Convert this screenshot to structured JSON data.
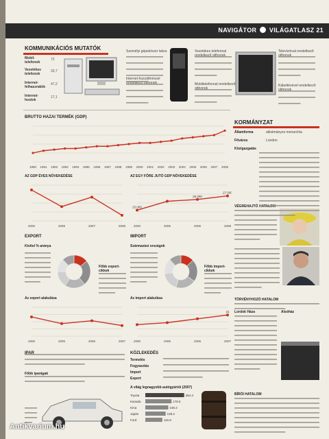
{
  "header": {
    "nav_left": "NAVIGÁTOR",
    "nav_right": "VILÁGATLASZ",
    "page_number": "21",
    "icon": "globe-icon"
  },
  "kom": {
    "title": "KOMMUNIKÁCIÓS MUTATÓK",
    "labels": [
      "Mobil-telefonok",
      "Vezetékes telefonok",
      "Internet-felhasználók",
      "Internet-hostok"
    ],
    "values": [
      "72",
      "33,7",
      "47,2",
      "17,1"
    ]
  },
  "dev_labels": [
    "Személyi gépek/ezer lakos",
    "Internet-hozzáféréssel rendelkező otthonok",
    "Vezetékes telefonnal rendelkező otthonok",
    "Mobiltelefonnal rendelkező otthonok",
    "Televízióval rendelkező otthonok",
    "Kábeltévével rendelkező otthonok"
  ],
  "gdp": {
    "title": "BRUTTO HAZAI TERMÉK (GDP)",
    "x": [
      "1990",
      "1991",
      "1992",
      "1993",
      "1994",
      "1995",
      "1996",
      "1997",
      "1998",
      "1999",
      "2000",
      "2001",
      "2002",
      "2003",
      "2004",
      "2005",
      "2006",
      "2007",
      "2008"
    ],
    "values": [
      0.8,
      1.0,
      1.1,
      1.2,
      1.2,
      1.3,
      1.4,
      1.4,
      1.5,
      1.6,
      1.7,
      1.7,
      1.8,
      1.9,
      2.1,
      2.2,
      2.3,
      2.4,
      2.8
    ]
  },
  "gdp_growth": {
    "title": "AZ GDP ÉVES NÖVEKEDÉSE",
    "x": [
      "2000",
      "2005",
      "2007",
      "2008"
    ],
    "values": [
      3.9,
      1.8,
      3.0,
      0.7
    ]
  },
  "gdp_pc": {
    "title": "AZ EGY FŐRE JUTÓ GDP NÖVEKEDÉSE",
    "x": [
      "2000",
      "2005",
      "2006",
      "2008"
    ],
    "values": [
      23.0,
      25.5,
      26.0,
      27.0
    ],
    "labels": [
      "23 000",
      "26 000",
      "27 000"
    ]
  },
  "export": {
    "title": "EXPORT",
    "pie_label": "Kivitel % aránya",
    "text": "Főbb export-cikkek",
    "axis_label": "Az export alakulása"
  },
  "import": {
    "title": "IMPORT",
    "pie_label": "Származási országok",
    "text": "Főbb import-cikkek",
    "axis_label": "Az import alakulása"
  },
  "trade_x": [
    "2000",
    "2005",
    "2006",
    "2007"
  ],
  "export_values": [
    30,
    23,
    26,
    21
  ],
  "import_values": [
    22,
    24,
    28,
    32
  ],
  "import_labels": [
    "31"
  ],
  "ipar": {
    "title": "IPAR",
    "lbl": "Főbb iparágak"
  },
  "kozlekedes": {
    "title": "KÖZLEKEDÉS",
    "rows": [
      "Termelés",
      "Fogyasztás",
      "Import",
      "Export"
    ]
  },
  "cars": {
    "title": "A világ legnagyobb autógyártói (2007)",
    "items": [
      "Toyota",
      "Kanada",
      "Kína",
      "Japán",
      "Ford"
    ],
    "values": [
      264.3,
      178.5,
      156.2,
      138.2,
      115.8
    ]
  },
  "korm": {
    "title": "KORMÁNYZAT",
    "rows": [
      "Államforma",
      "Főváros",
      "Közigazgatás"
    ],
    "values": [
      "alkotmányos monarchia",
      "London",
      ""
    ]
  },
  "vegrehajto": {
    "title": "VÉGREHAJTÓ HATALOM"
  },
  "torvenyhozo": {
    "title": "TÖRVÉNYHOZÓ HATALOM",
    "left": "Lordok Háza",
    "right": "Alsóház"
  },
  "birosag": {
    "title": "BÍRÓI HATALOM"
  },
  "colors": {
    "accent": "#c8321e",
    "dark": "#2a2a2a"
  },
  "watermark": "Antikvarium.hu"
}
